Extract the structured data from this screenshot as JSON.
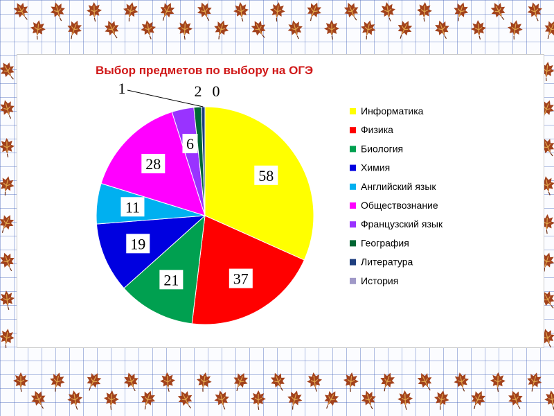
{
  "chart_data": {
    "type": "pie",
    "title": "Выбор предметов по выбору на ОГЭ",
    "categories": [
      "Информатика",
      "Физика",
      "Биология",
      "Химия",
      "Английский язык",
      "Обществознание",
      "Французский язык",
      "География",
      "Литература",
      "История"
    ],
    "values": [
      58,
      37,
      21,
      19,
      11,
      28,
      6,
      2,
      1,
      0
    ],
    "colors": [
      "#ffff00",
      "#ff0000",
      "#00a050",
      "#0000e0",
      "#00b0f0",
      "#ff00ff",
      "#9933ff",
      "#006633",
      "#1f3f7f",
      "#a099c8"
    ],
    "legend_position": "right",
    "data_labels": [
      "58",
      "37",
      "21",
      "19",
      "11",
      "28",
      "6",
      "2",
      "1",
      "0"
    ]
  }
}
